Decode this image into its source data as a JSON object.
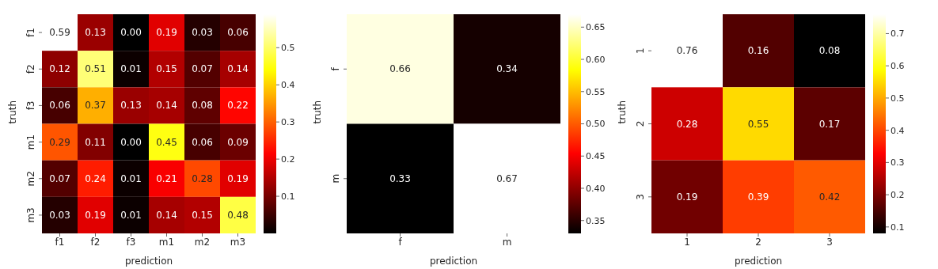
{
  "chart_data": [
    {
      "type": "heatmap",
      "xlabel": "prediction",
      "ylabel": "truth",
      "categories": [
        "f1",
        "f2",
        "f3",
        "m1",
        "m2",
        "m3"
      ],
      "y_categories": [
        "f1",
        "f2",
        "f3",
        "m1",
        "m2",
        "m3"
      ],
      "cells": [
        [
          0.59,
          0.13,
          0.0,
          0.19,
          0.03,
          0.06
        ],
        [
          0.12,
          0.51,
          0.01,
          0.15,
          0.07,
          0.14
        ],
        [
          0.06,
          0.37,
          0.13,
          0.14,
          0.08,
          0.22
        ],
        [
          0.29,
          0.11,
          0.0,
          0.45,
          0.06,
          0.09
        ],
        [
          0.07,
          0.24,
          0.01,
          0.21,
          0.28,
          0.19
        ],
        [
          0.03,
          0.19,
          0.01,
          0.14,
          0.15,
          0.48
        ]
      ],
      "cell_labels": [
        [
          "0.59",
          "0.13",
          "0.00",
          "0.19",
          "0.03",
          "0.06"
        ],
        [
          "0.12",
          "0.51",
          "0.01",
          "0.15",
          "0.07",
          "0.14"
        ],
        [
          "0.06",
          "0.37",
          "0.13",
          "0.14",
          "0.08",
          "0.22"
        ],
        [
          "0.29",
          "0.11",
          "0.00",
          "0.45",
          "0.06",
          "0.09"
        ],
        [
          "0.07",
          "0.24",
          "0.01",
          "0.21",
          "0.28",
          "0.19"
        ],
        [
          "0.03",
          "0.19",
          "0.01",
          "0.14",
          "0.15",
          "0.48"
        ]
      ],
      "clim": [
        0.0,
        0.59
      ],
      "cticks": [
        0.1,
        0.2,
        0.3,
        0.4,
        0.5
      ]
    },
    {
      "type": "heatmap",
      "xlabel": "prediction",
      "ylabel": "truth",
      "categories": [
        "f",
        "m"
      ],
      "y_categories": [
        "f",
        "m"
      ],
      "cells": [
        [
          0.66,
          0.34
        ],
        [
          0.33,
          0.67
        ]
      ],
      "cell_labels": [
        [
          "0.66",
          "0.34"
        ],
        [
          "0.33",
          "0.67"
        ]
      ],
      "clim": [
        0.33,
        0.67
      ],
      "cticks": [
        0.35,
        {
          "value": 0.4,
          "label": "0.40"
        },
        0.45,
        {
          "value": 0.5,
          "label": "0.50"
        },
        0.55,
        {
          "value": 0.6,
          "label": "0.60"
        },
        0.65
      ]
    },
    {
      "type": "heatmap",
      "xlabel": "prediction",
      "ylabel": "truth",
      "categories": [
        "1",
        "2",
        "3"
      ],
      "y_categories": [
        "1",
        "2",
        "3"
      ],
      "cells": [
        [
          0.76,
          0.16,
          0.08
        ],
        [
          0.28,
          0.55,
          0.17
        ],
        [
          0.19,
          0.39,
          0.42
        ]
      ],
      "cell_labels": [
        [
          "0.76",
          "0.16",
          "0.08"
        ],
        [
          "0.28",
          "0.55",
          "0.17"
        ],
        [
          "0.19",
          "0.39",
          "0.42"
        ]
      ],
      "clim": [
        0.08,
        0.76
      ],
      "cticks": [
        0.1,
        0.2,
        0.3,
        0.4,
        0.5,
        0.6,
        0.7
      ]
    }
  ]
}
